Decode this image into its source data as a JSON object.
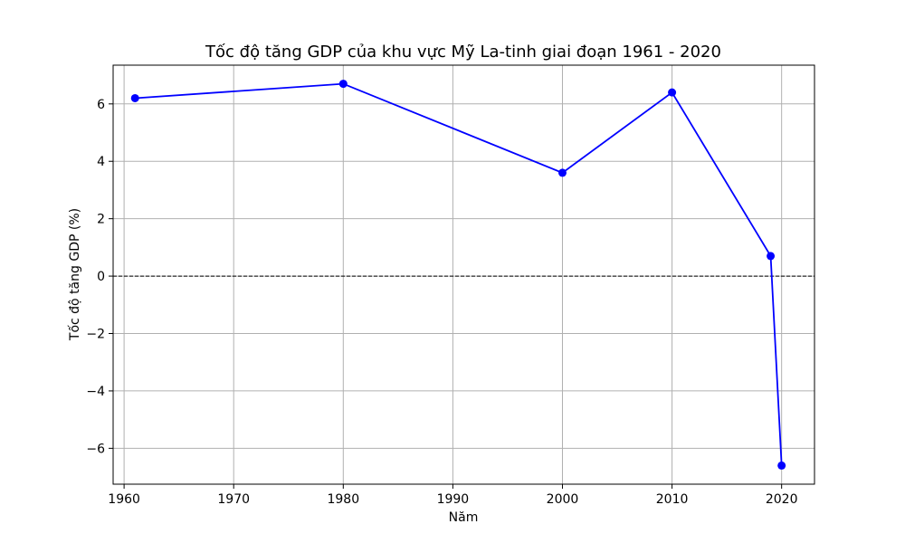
{
  "chart_data": {
    "type": "line",
    "title": "Tốc độ tăng GDP của khu vực Mỹ La-tinh giai đoạn 1961 - 2020",
    "xlabel": "Năm",
    "ylabel": "Tốc độ tăng GDP (%)",
    "x": [
      1961,
      1980,
      2000,
      2010,
      2019,
      2020
    ],
    "series": [
      {
        "values": [
          6.2,
          6.7,
          3.6,
          6.4,
          0.7,
          -6.6
        ],
        "color": "#0000ff"
      }
    ],
    "xlim": [
      1959,
      2023
    ],
    "ylim": [
      -7.25,
      7.35
    ],
    "xticks": [
      1960,
      1970,
      1980,
      1990,
      2000,
      2010,
      2020
    ],
    "yticks": [
      -6,
      -4,
      -2,
      0,
      2,
      4,
      6
    ],
    "yticklabels": [
      "−6",
      "−4",
      "−2",
      "0",
      "2",
      "4",
      "6"
    ],
    "grid": true,
    "reference_line": {
      "y": 0,
      "style": "dashed",
      "color": "#000000"
    }
  }
}
